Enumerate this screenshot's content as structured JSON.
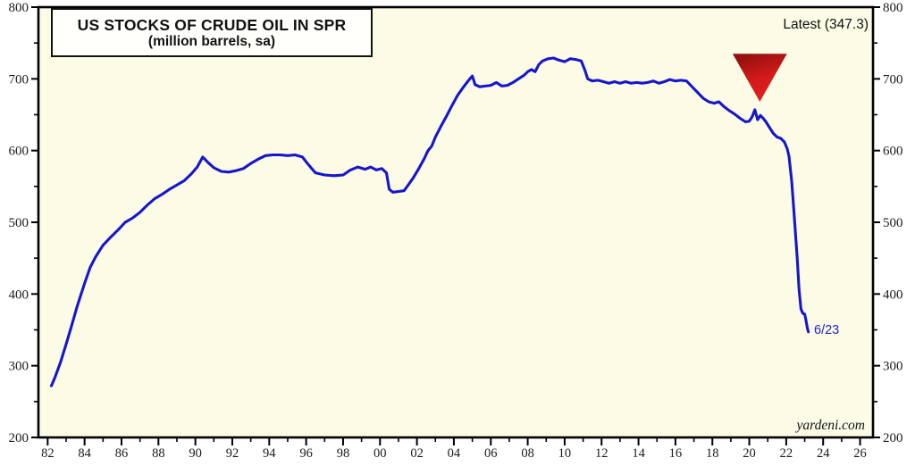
{
  "header": {
    "title": "US STOCKS OF CRUDE OIL IN SPR",
    "subtitle": "(million barrels, sa)",
    "latest_label": "Latest (347.3)"
  },
  "annotations": {
    "source": "yardeni.com",
    "endpoint_label": "6/23"
  },
  "colors": {
    "plot_bg": "#fcfce6",
    "axis": "#000000",
    "tick_label": "#1b1b1b",
    "line": "#1616cd",
    "endpoint_text": "#2121cc",
    "marker_dark": "#8f0e0e",
    "marker_bright": "#e01f1f"
  },
  "chart_data": {
    "type": "line",
    "title": "US STOCKS OF CRUDE OIL IN SPR",
    "subtitle": "(million barrels, sa)",
    "ylabel": "million barrels",
    "grid": false,
    "legend": "none",
    "latest_value": 347.3,
    "latest_date": "6/23",
    "x_axis": {
      "range": [
        81.5,
        126.7
      ],
      "major_tick_start": 82,
      "major_tick_step": 2,
      "minor_tick_step": 1,
      "labels": [
        "82",
        "84",
        "86",
        "88",
        "90",
        "92",
        "94",
        "96",
        "98",
        "00",
        "02",
        "04",
        "06",
        "08",
        "10",
        "12",
        "14",
        "16",
        "18",
        "20",
        "22",
        "24",
        "26"
      ]
    },
    "y_axis": {
      "range": [
        200,
        800
      ],
      "major_step": 100,
      "minor_step": 50,
      "labels": [
        "200",
        "300",
        "400",
        "500",
        "600",
        "700",
        "800"
      ],
      "mirrored_right": true
    },
    "marker": {
      "shape": "triangle-down",
      "year": 120.57,
      "top_value": 735,
      "apex_value": 668,
      "half_width_years": 1.47
    },
    "series": [
      {
        "color": "#1616cd",
        "points": [
          [
            82.2,
            272
          ],
          [
            82.4,
            284
          ],
          [
            82.7,
            305
          ],
          [
            83.0,
            330
          ],
          [
            83.3,
            356
          ],
          [
            83.6,
            383
          ],
          [
            84.0,
            415
          ],
          [
            84.3,
            437
          ],
          [
            84.6,
            452
          ],
          [
            85.0,
            468
          ],
          [
            85.4,
            479
          ],
          [
            85.8,
            489
          ],
          [
            86.2,
            500
          ],
          [
            86.6,
            506
          ],
          [
            87.0,
            514
          ],
          [
            87.4,
            524
          ],
          [
            87.8,
            533
          ],
          [
            88.2,
            539
          ],
          [
            88.6,
            546
          ],
          [
            89.0,
            552
          ],
          [
            89.4,
            558
          ],
          [
            89.8,
            568
          ],
          [
            90.1,
            577
          ],
          [
            90.4,
            591
          ],
          [
            90.7,
            583
          ],
          [
            91.0,
            576
          ],
          [
            91.4,
            571
          ],
          [
            91.8,
            570
          ],
          [
            92.2,
            572
          ],
          [
            92.6,
            575
          ],
          [
            93.0,
            582
          ],
          [
            93.4,
            588
          ],
          [
            93.8,
            593
          ],
          [
            94.2,
            594
          ],
          [
            94.6,
            594
          ],
          [
            95.0,
            593
          ],
          [
            95.4,
            594
          ],
          [
            95.8,
            591
          ],
          [
            96.1,
            581
          ],
          [
            96.5,
            569
          ],
          [
            97.0,
            566
          ],
          [
            97.5,
            565
          ],
          [
            98.0,
            566
          ],
          [
            98.4,
            573
          ],
          [
            98.8,
            577
          ],
          [
            99.2,
            574
          ],
          [
            99.5,
            577
          ],
          [
            99.8,
            573
          ],
          [
            100.1,
            575
          ],
          [
            100.35,
            569
          ],
          [
            100.5,
            546
          ],
          [
            100.7,
            542
          ],
          [
            101.0,
            543
          ],
          [
            101.3,
            544
          ],
          [
            101.5,
            551
          ],
          [
            101.8,
            562
          ],
          [
            102.1,
            575
          ],
          [
            102.4,
            589
          ],
          [
            102.6,
            600
          ],
          [
            102.8,
            606
          ],
          [
            103.0,
            619
          ],
          [
            103.3,
            634
          ],
          [
            103.6,
            648
          ],
          [
            103.9,
            663
          ],
          [
            104.2,
            677
          ],
          [
            104.5,
            688
          ],
          [
            104.8,
            698
          ],
          [
            105.0,
            704
          ],
          [
            105.15,
            692
          ],
          [
            105.4,
            689
          ],
          [
            105.7,
            690
          ],
          [
            106.0,
            691
          ],
          [
            106.3,
            695
          ],
          [
            106.6,
            690
          ],
          [
            106.9,
            691
          ],
          [
            107.2,
            695
          ],
          [
            107.5,
            700
          ],
          [
            107.8,
            705
          ],
          [
            108.0,
            710
          ],
          [
            108.2,
            713
          ],
          [
            108.4,
            710
          ],
          [
            108.6,
            720
          ],
          [
            108.8,
            725
          ],
          [
            109.1,
            728
          ],
          [
            109.4,
            729
          ],
          [
            109.7,
            726
          ],
          [
            110.0,
            724
          ],
          [
            110.3,
            728
          ],
          [
            110.6,
            727
          ],
          [
            110.9,
            725
          ],
          [
            111.1,
            712
          ],
          [
            111.25,
            700
          ],
          [
            111.5,
            697
          ],
          [
            111.8,
            698
          ],
          [
            112.1,
            696
          ],
          [
            112.4,
            694
          ],
          [
            112.7,
            696
          ],
          [
            113.0,
            694
          ],
          [
            113.3,
            696
          ],
          [
            113.6,
            694
          ],
          [
            113.9,
            695
          ],
          [
            114.2,
            694
          ],
          [
            114.5,
            695
          ],
          [
            114.8,
            697
          ],
          [
            115.1,
            694
          ],
          [
            115.4,
            696
          ],
          [
            115.7,
            699
          ],
          [
            116.0,
            697
          ],
          [
            116.3,
            698
          ],
          [
            116.6,
            697
          ],
          [
            116.9,
            689
          ],
          [
            117.2,
            681
          ],
          [
            117.5,
            673
          ],
          [
            117.8,
            668
          ],
          [
            118.1,
            666
          ],
          [
            118.35,
            668
          ],
          [
            118.6,
            662
          ],
          [
            118.9,
            656
          ],
          [
            119.2,
            651
          ],
          [
            119.5,
            645
          ],
          [
            119.8,
            640
          ],
          [
            120.0,
            641
          ],
          [
            120.15,
            647
          ],
          [
            120.3,
            657
          ],
          [
            120.45,
            643
          ],
          [
            120.6,
            649
          ],
          [
            120.75,
            645
          ],
          [
            120.9,
            640
          ],
          [
            121.1,
            632
          ],
          [
            121.3,
            624
          ],
          [
            121.5,
            619
          ],
          [
            121.7,
            617
          ],
          [
            121.9,
            612
          ],
          [
            122.05,
            603
          ],
          [
            122.15,
            592
          ],
          [
            122.3,
            556
          ],
          [
            122.45,
            503
          ],
          [
            122.6,
            448
          ],
          [
            122.7,
            405
          ],
          [
            122.8,
            379
          ],
          [
            122.9,
            373
          ],
          [
            123.0,
            372
          ],
          [
            123.05,
            366
          ],
          [
            123.15,
            352
          ],
          [
            123.2,
            347.3
          ]
        ]
      }
    ]
  }
}
